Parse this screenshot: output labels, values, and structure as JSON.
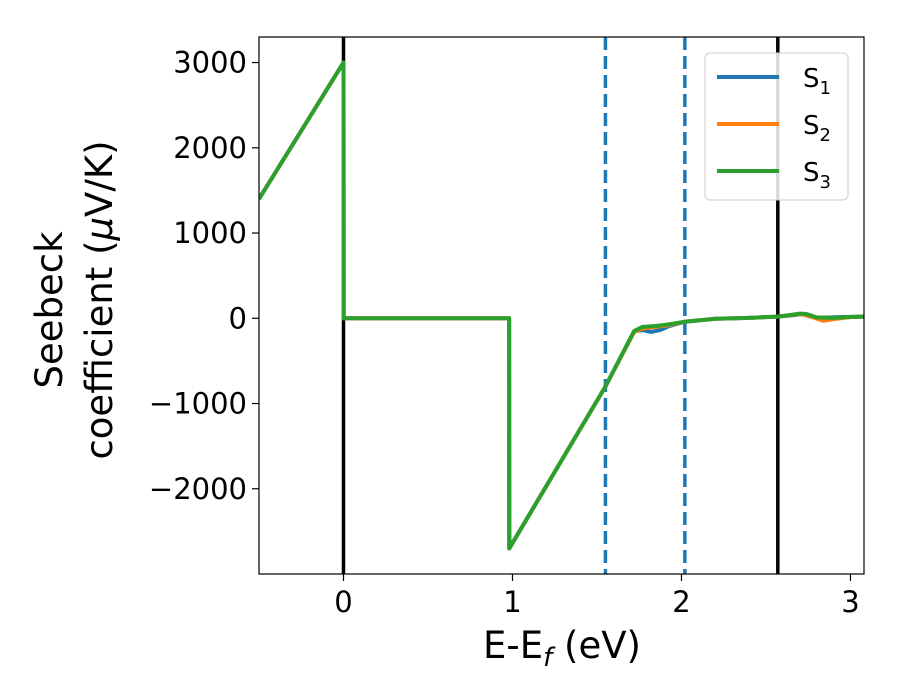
{
  "chart_data": {
    "type": "line",
    "xlabel": "E-E",
    "xlabel_sub": "f",
    "xlabel_unit": " (eV)",
    "ylabel_line1": "Seebeck",
    "ylabel_line2": "coefficient  (",
    "ylabel_mu": "μ",
    "ylabel_unit": "V/K)",
    "xlim": [
      -0.5,
      3.08
    ],
    "ylim": [
      -3000,
      3300
    ],
    "xticks": [
      0,
      1,
      2,
      3
    ],
    "yticks": [
      3000,
      2000,
      1000,
      0,
      -1000,
      -2000
    ],
    "ytick_labels": [
      "3000",
      "2000",
      "1000",
      "0",
      "−1000",
      "−2000"
    ],
    "grid": false,
    "legend_position": "top-right",
    "vlines": [
      {
        "x": 0.0,
        "style": "solid",
        "color": "#000000"
      },
      {
        "x": 2.57,
        "style": "solid",
        "color": "#000000"
      },
      {
        "x": 1.55,
        "style": "dashed",
        "color": "#1f77b4"
      },
      {
        "x": 2.02,
        "style": "dashed",
        "color": "#1f77b4"
      }
    ],
    "series": [
      {
        "name": "S",
        "sub": "1",
        "color": "#1f77b4",
        "x": [
          -0.5,
          0.0,
          0.001,
          0.98,
          0.981,
          1.55,
          1.72,
          1.77,
          1.82,
          1.87,
          1.93,
          2.02,
          2.2,
          2.4,
          2.57,
          2.68,
          2.72,
          2.76,
          2.82,
          2.95,
          3.08
        ],
        "y": [
          1400,
          3000,
          0,
          0,
          -2700,
          -800,
          -150,
          -140,
          -160,
          -140,
          -90,
          -40,
          -5,
          5,
          20,
          40,
          50,
          20,
          5,
          15,
          20
        ]
      },
      {
        "name": "S",
        "sub": "2",
        "color": "#ff7f0e",
        "x": [
          -0.5,
          0.0,
          0.001,
          0.98,
          0.981,
          1.55,
          1.72,
          1.77,
          1.85,
          1.93,
          2.02,
          2.2,
          2.4,
          2.57,
          2.68,
          2.72,
          2.78,
          2.84,
          2.9,
          3.0,
          3.08
        ],
        "y": [
          1400,
          3000,
          0,
          0,
          -2700,
          -800,
          -160,
          -120,
          -100,
          -80,
          -40,
          -5,
          5,
          20,
          45,
          45,
          10,
          -30,
          -10,
          15,
          20
        ]
      },
      {
        "name": "S",
        "sub": "3",
        "color": "#2ca02c",
        "x": [
          -0.5,
          0.0,
          0.001,
          0.98,
          0.981,
          1.55,
          1.72,
          1.77,
          1.85,
          1.93,
          2.02,
          2.2,
          2.4,
          2.57,
          2.65,
          2.7,
          2.74,
          2.8,
          2.9,
          3.0,
          3.08
        ],
        "y": [
          1400,
          3000,
          0,
          0,
          -2700,
          -800,
          -150,
          -100,
          -90,
          -70,
          -40,
          -5,
          5,
          20,
          40,
          55,
          50,
          10,
          5,
          15,
          20
        ]
      }
    ]
  }
}
